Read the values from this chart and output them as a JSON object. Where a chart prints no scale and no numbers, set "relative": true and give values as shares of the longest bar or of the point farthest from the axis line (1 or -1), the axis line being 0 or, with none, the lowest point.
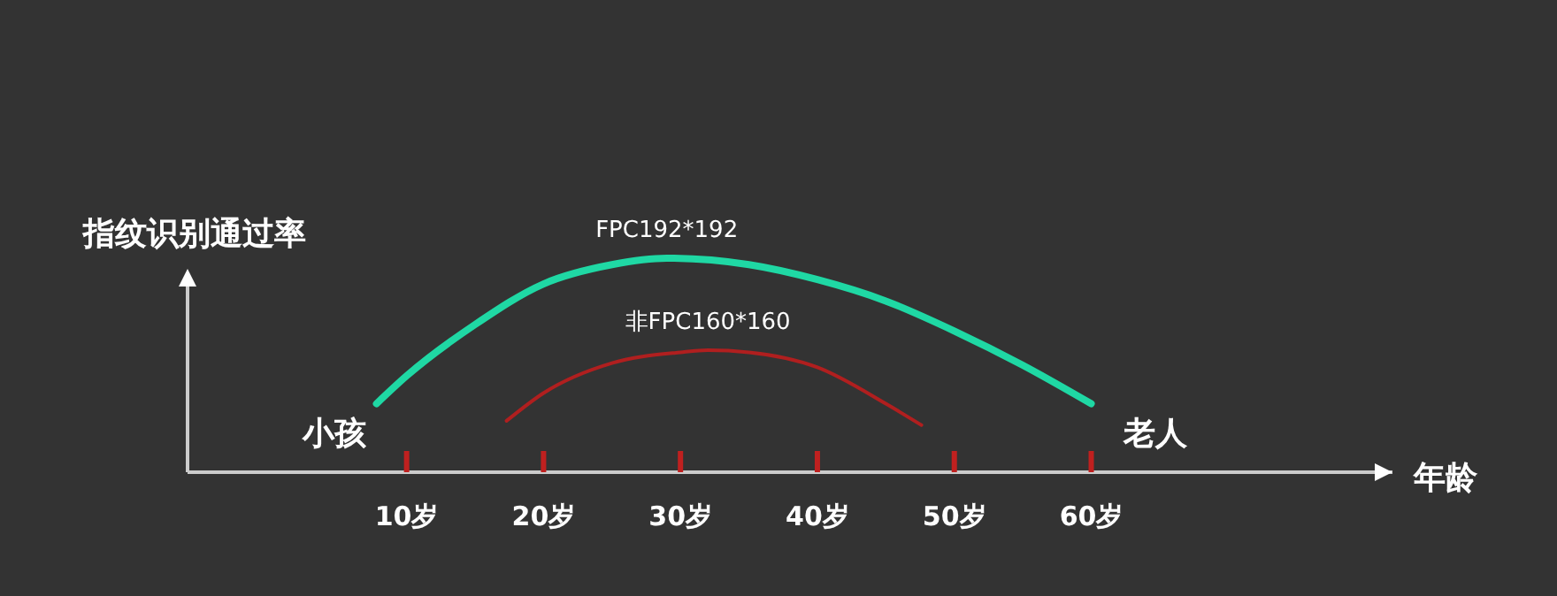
{
  "chart_data": {
    "type": "line",
    "relative": true,
    "ylabel": "指纹识别通过率",
    "xlabel": "年龄",
    "xlim": [
      -6,
      82
    ],
    "xticks": [
      {
        "value": 10,
        "label": "10岁"
      },
      {
        "value": 20,
        "label": "20岁"
      },
      {
        "value": 30,
        "label": "30岁"
      },
      {
        "value": 40,
        "label": "40岁"
      },
      {
        "value": 50,
        "label": "50岁"
      },
      {
        "value": 60,
        "label": "60岁"
      }
    ],
    "series": [
      {
        "name": "FPC192*192",
        "color": "#1fd8a4",
        "x": [
          7.8,
          10,
          15,
          20,
          25,
          29,
          35,
          40,
          45,
          50,
          55,
          60
        ],
        "values": [
          0.32,
          0.45,
          0.69,
          0.88,
          0.97,
          1,
          0.97,
          0.9,
          0.8,
          0.66,
          0.5,
          0.32
        ]
      },
      {
        "name": "非FPC160*160",
        "color": "#b01f1f",
        "x": [
          17.3,
          20,
          25,
          30,
          32,
          35,
          40,
          45,
          47.6
        ],
        "values": [
          0.24,
          0.37,
          0.51,
          0.56,
          0.57,
          0.56,
          0.49,
          0.32,
          0.22
        ]
      }
    ],
    "annotations": [
      "小孩",
      "老人"
    ],
    "grid": false,
    "legend": false,
    "marker": "none",
    "line_style": "solid"
  }
}
